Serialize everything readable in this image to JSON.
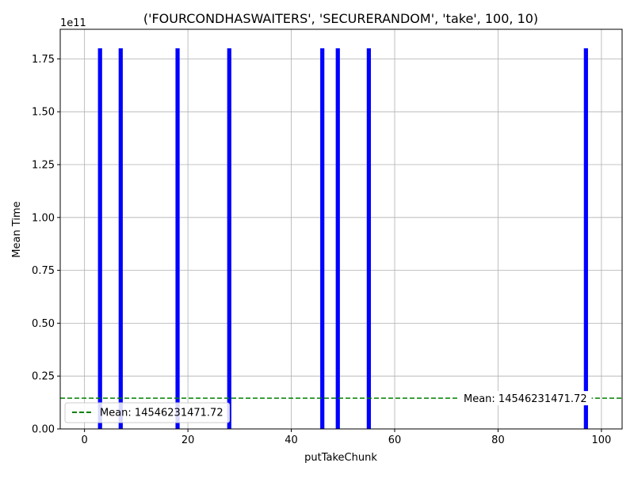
{
  "chart_data": {
    "type": "bar",
    "title": "('FOURCONDHASWAITERS', 'SECURERANDOM', 'take', 100, 10)",
    "xlabel": "putTakeChunk",
    "ylabel": "Mean Time",
    "y_offset_label": "1e11",
    "xlim": [
      -4.7,
      104
    ],
    "ylim": [
      0,
      189000000000.0
    ],
    "x_ticks": [
      0,
      20,
      40,
      60,
      80,
      100
    ],
    "x_tick_labels": [
      "0",
      "20",
      "40",
      "60",
      "80",
      "100"
    ],
    "y_ticks": [
      0,
      25000000000.0,
      50000000000.0,
      75000000000.0,
      100000000000.0,
      125000000000.0,
      150000000000.0,
      175000000000.0
    ],
    "y_tick_labels": [
      "0.00",
      "0.25",
      "0.50",
      "0.75",
      "1.00",
      "1.25",
      "1.50",
      "1.75"
    ],
    "grid": true,
    "bar_color": "#0000ff",
    "x": [
      3,
      7,
      18,
      28,
      46,
      49,
      55,
      97
    ],
    "values": [
      180000000000.0,
      180000000000.0,
      180000000000.0,
      180000000000.0,
      180000000000.0,
      180000000000.0,
      180000000000.0,
      180000000000.0
    ],
    "mean_line": {
      "value": 14546231471.72,
      "label": "Mean: 14546231471.72",
      "color": "#008000",
      "style": "dashed"
    },
    "legend": {
      "position": "lower-left",
      "entries": [
        "Mean: 14546231471.72"
      ]
    }
  }
}
